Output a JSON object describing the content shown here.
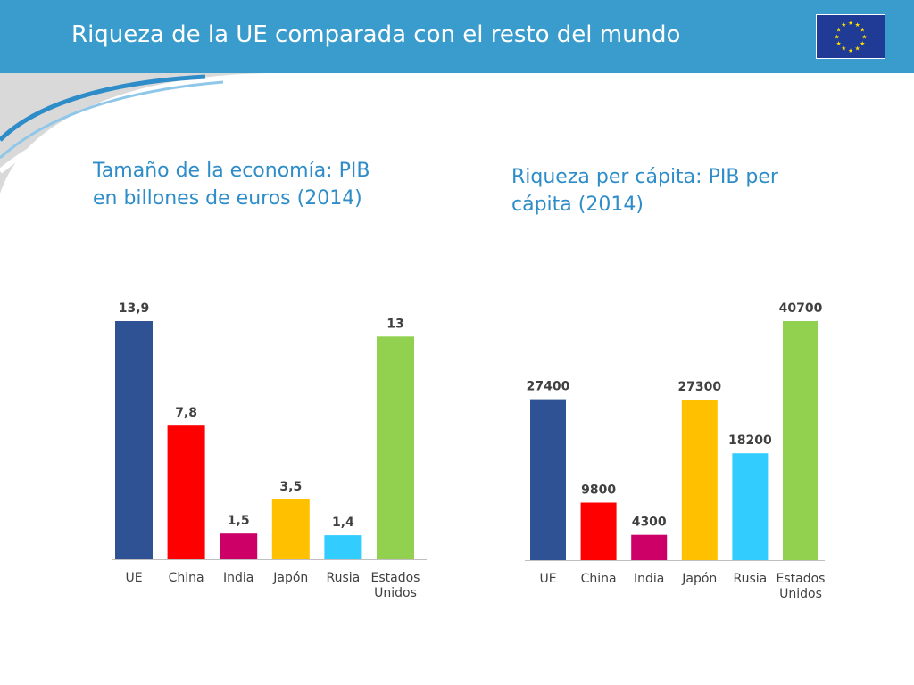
{
  "header": {
    "title": "Riqueza de la UE comparada con el resto del mundo"
  },
  "colors": {
    "header": "#3a9ccc",
    "subtitle": "#2e8dc8",
    "flag_blue": "#1f3b96",
    "flag_star": "#ffdd00",
    "bars": [
      "#2e5294",
      "#ff0000",
      "#cc0066",
      "#ffc000",
      "#33ccff",
      "#92d050"
    ]
  },
  "left_chart": {
    "subtitle_line1": "Tamaño de la economía: PIB",
    "subtitle_line2": "en billones de euros (2014)"
  },
  "right_chart": {
    "subtitle_line1": "Riqueza per cápita: PIB per",
    "subtitle_line2": "cápita (2014)"
  },
  "chart_data": [
    {
      "type": "bar",
      "title": "Tamaño de la economía: PIB en billones de euros (2014)",
      "categories": [
        [
          "UE"
        ],
        [
          "China"
        ],
        [
          "India"
        ],
        [
          "Japón"
        ],
        [
          "Rusia"
        ],
        [
          "Estados",
          "Unidos"
        ]
      ],
      "values": [
        13.9,
        7.8,
        1.5,
        3.5,
        1.4,
        13
      ],
      "value_labels": [
        "13,9",
        "7,8",
        "1,5",
        "3,5",
        "1,4",
        "13"
      ],
      "xlabel": "",
      "ylabel": "",
      "ylim": [
        0,
        13.9
      ],
      "grid": false
    },
    {
      "type": "bar",
      "title": "Riqueza per cápita: PIB per cápita (2014)",
      "categories": [
        [
          "UE"
        ],
        [
          "China"
        ],
        [
          "India"
        ],
        [
          "Japón"
        ],
        [
          "Rusia"
        ],
        [
          "Estados",
          "Unidos"
        ]
      ],
      "values": [
        27400,
        9800,
        4300,
        27300,
        18200,
        40700
      ],
      "value_labels": [
        "27400",
        "9800",
        "4300",
        "27300",
        "18200",
        "40700"
      ],
      "xlabel": "",
      "ylabel": "",
      "ylim": [
        0,
        40700
      ],
      "grid": false
    }
  ]
}
